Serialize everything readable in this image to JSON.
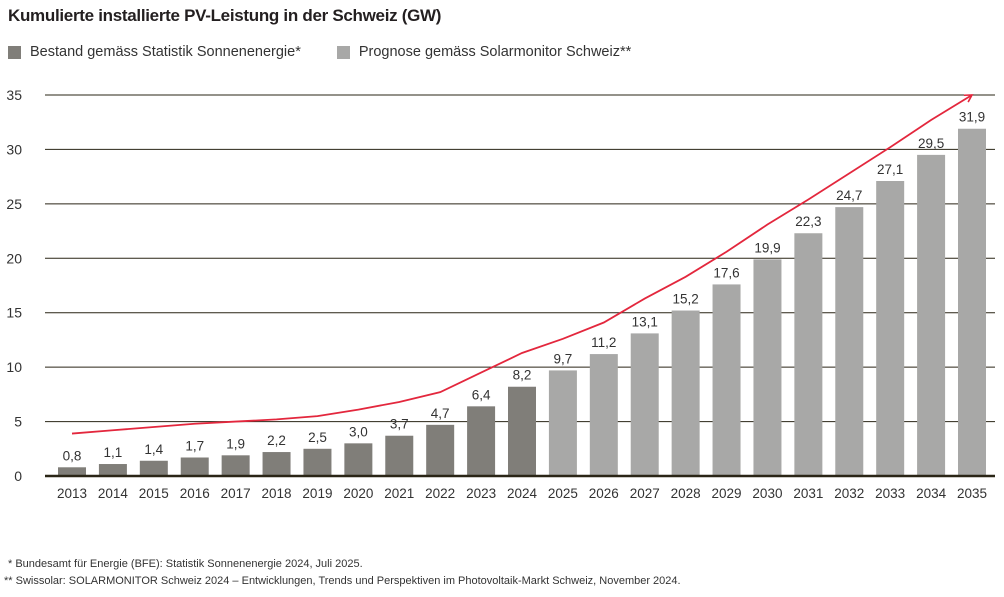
{
  "chart_data": {
    "type": "bar",
    "title": "Kumulierte installierte PV-Leistung in der Schweiz (GW)",
    "categories": [
      "2013",
      "2014",
      "2015",
      "2016",
      "2017",
      "2018",
      "2019",
      "2020",
      "2021",
      "2022",
      "2023",
      "2024",
      "2025",
      "2026",
      "2027",
      "2028",
      "2029",
      "2030",
      "2031",
      "2032",
      "2033",
      "2034",
      "2035"
    ],
    "series": [
      {
        "name": "Bestand gemäss Statistik Sonnenenergie*",
        "color": "#807e79",
        "values": [
          0.8,
          1.1,
          1.4,
          1.7,
          1.9,
          2.2,
          2.5,
          3.0,
          3.7,
          4.7,
          6.4,
          8.2,
          null,
          null,
          null,
          null,
          null,
          null,
          null,
          null,
          null,
          null,
          null
        ]
      },
      {
        "name": "Prognose gemäss Solarmonitor Schweiz**",
        "color": "#a8a8a7",
        "values": [
          null,
          null,
          null,
          null,
          null,
          null,
          null,
          null,
          null,
          null,
          null,
          null,
          9.7,
          11.2,
          13.1,
          15.2,
          17.6,
          19.9,
          22.3,
          24.7,
          27.1,
          29.5,
          31.9
        ]
      }
    ],
    "data_labels": [
      "0,8",
      "1,1",
      "1,4",
      "1,7",
      "1,9",
      "2,2",
      "2,5",
      "3,0",
      "3,7",
      "4,7",
      "6,4",
      "8,2",
      "9,7",
      "11,2",
      "13,1",
      "15,2",
      "17,6",
      "19,9",
      "22,3",
      "24,7",
      "27,1",
      "29,5",
      "31,9"
    ],
    "trend_line": {
      "type": "line",
      "color": "#e3273d",
      "arrow": true,
      "values": [
        3.9,
        4.2,
        4.5,
        4.8,
        5.0,
        5.2,
        5.5,
        6.1,
        6.8,
        7.7,
        9.5,
        11.3,
        12.6,
        14.1,
        16.3,
        18.3,
        20.6,
        23.1,
        25.4,
        27.8,
        30.2,
        32.7,
        35.0
      ]
    },
    "yticks": [
      "0",
      "5",
      "10",
      "15",
      "20",
      "25",
      "30",
      "35"
    ],
    "ylim": [
      0,
      35
    ],
    "grid": true,
    "legend_placement": "top-left"
  },
  "footnotes": [
    "*  Bundesamt für Energie (BFE): Statistik Sonnenenergie 2024, Juli 2025.",
    "**  Swissolar: SOLARMONITOR Schweiz 2024 – Entwicklungen, Trends und Perspektiven im Photovoltaik-Markt Schweiz, November 2024."
  ]
}
